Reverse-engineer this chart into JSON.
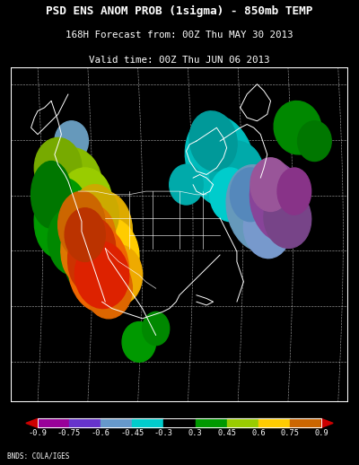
{
  "title_line1": "PSD ENS ANOM PROB (1sigma) - 850mb TEMP",
  "title_line2": "168H Forecast from: 00Z Thu MAY 30 2013",
  "title_line3": "Valid time: 00Z Thu JUN 06 2013",
  "credit": "BNDS: COLA/IGES",
  "background_color": "#000000",
  "title_color": "#ffffff",
  "cb_segment_colors": [
    "#990099",
    "#6633cc",
    "#6699cc",
    "#00cccc",
    "#000000",
    "#009900",
    "#99cc00",
    "#ffcc00",
    "#cc6600"
  ],
  "colorbar_labels": [
    "-0.9",
    "-0.75",
    "-0.6",
    "-0.45",
    "-0.3",
    "0.3",
    "0.45",
    "0.6",
    "0.75",
    "0.9"
  ],
  "fig_width": 4.0,
  "fig_height": 5.18
}
